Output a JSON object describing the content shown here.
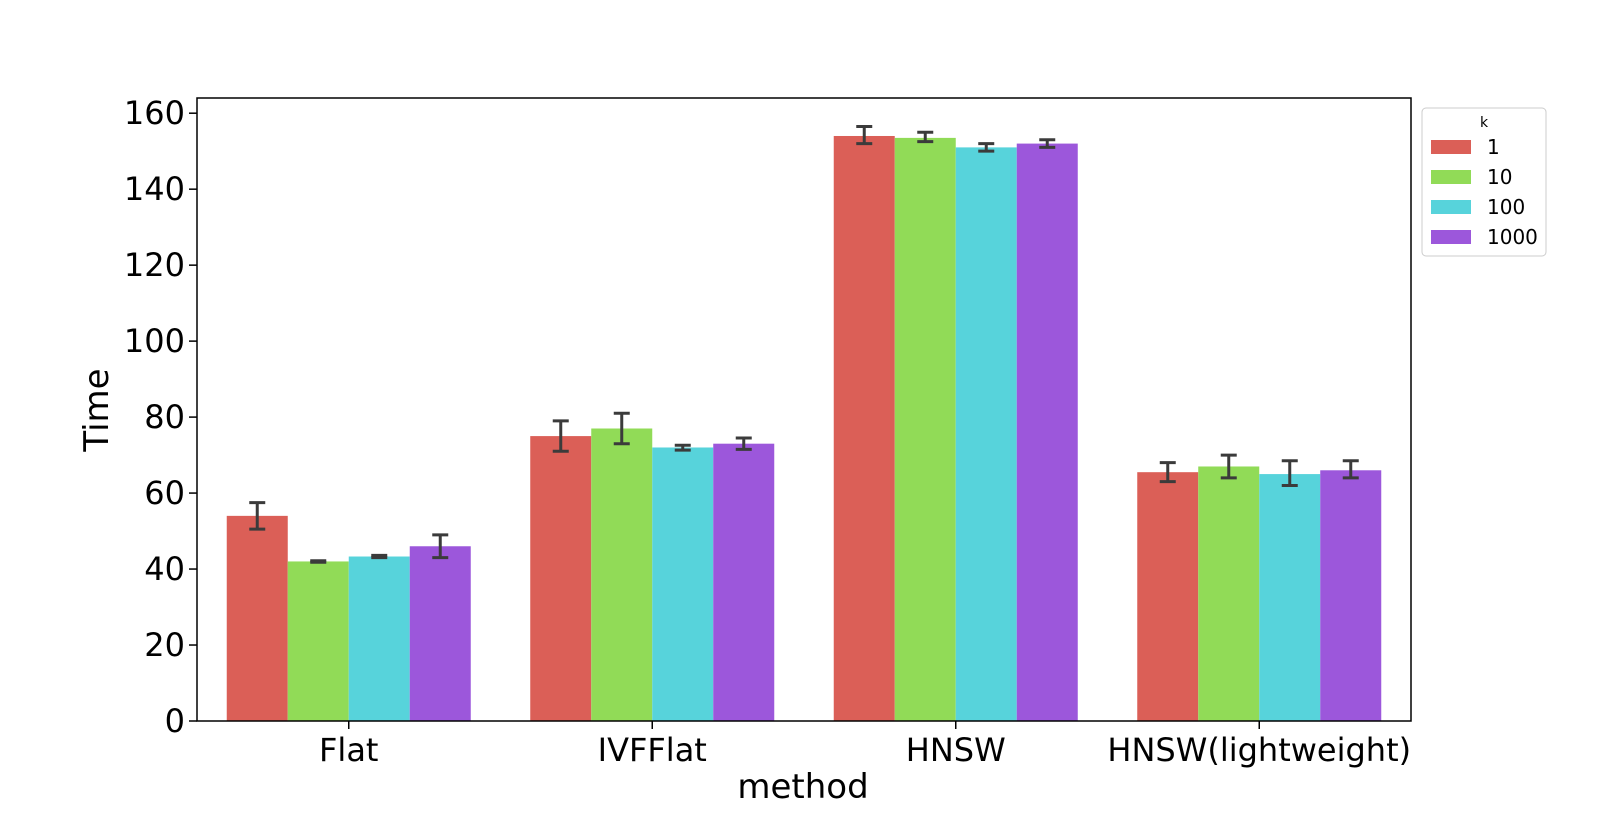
{
  "chart_data": {
    "type": "bar",
    "xlabel": "method",
    "ylabel": "Time",
    "categories": [
      "Flat",
      "IVFFlat",
      "HNSW",
      "HNSW(lightweight)"
    ],
    "ylim": [
      0,
      164
    ],
    "yticks": [
      0,
      20,
      40,
      60,
      80,
      100,
      120,
      140,
      160
    ],
    "legend": {
      "title": "k",
      "position": "top-right-outside"
    },
    "series": [
      {
        "name": "1",
        "color": "#db5f57",
        "values": [
          54,
          75,
          154,
          65.5
        ],
        "errors": [
          [
            50.5,
            57.5
          ],
          [
            71,
            79
          ],
          [
            152,
            156.5
          ],
          [
            63,
            68
          ]
        ]
      },
      {
        "name": "10",
        "color": "#91db57",
        "values": [
          42,
          77,
          153.5,
          67
        ],
        "errors": [
          [
            41.8,
            42.2
          ],
          [
            73,
            81
          ],
          [
            152.5,
            155
          ],
          [
            64,
            70
          ]
        ]
      },
      {
        "name": "100",
        "color": "#57d3db",
        "values": [
          43.3,
          72,
          151,
          65
        ],
        "errors": [
          [
            43,
            43.6
          ],
          [
            71.3,
            72.6
          ],
          [
            150,
            152
          ],
          [
            62,
            68.5
          ]
        ]
      },
      {
        "name": "1000",
        "color": "#9c57db",
        "values": [
          46,
          73,
          152,
          66
        ],
        "errors": [
          [
            43,
            49
          ],
          [
            71.5,
            74.5
          ],
          [
            151,
            153
          ],
          [
            64,
            68.5
          ]
        ]
      }
    ],
    "grid": false
  }
}
